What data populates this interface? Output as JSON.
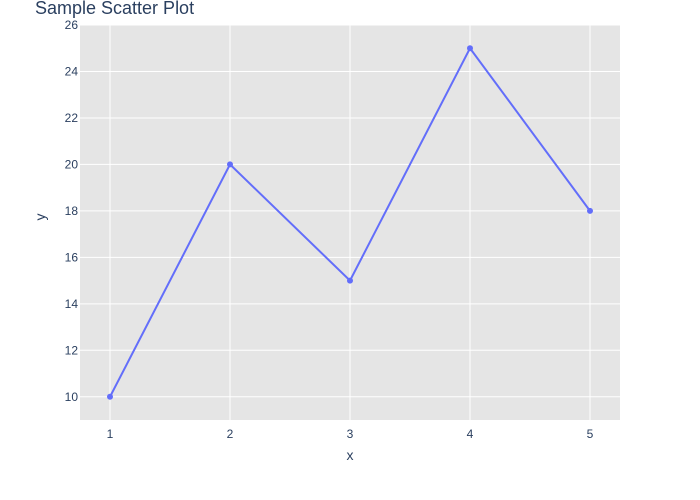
{
  "chart_data": {
    "type": "scatter",
    "mode": "lines+markers",
    "title": "Sample Scatter Plot",
    "xlabel": "x",
    "ylabel": "y",
    "x": [
      1,
      2,
      3,
      4,
      5
    ],
    "y": [
      10,
      20,
      15,
      25,
      18
    ],
    "xlim": [
      0.75,
      5.25
    ],
    "ylim": [
      9,
      26
    ],
    "x_ticks": [
      1,
      2,
      3,
      4,
      5
    ],
    "y_ticks": [
      10,
      12,
      14,
      16,
      18,
      20,
      22,
      24,
      26
    ],
    "grid": true,
    "legend": "none",
    "colors": {
      "plot_background": "#e5e5e5",
      "grid": "#ffffff",
      "line": "#636efa",
      "text": "#2a3f5f"
    }
  }
}
